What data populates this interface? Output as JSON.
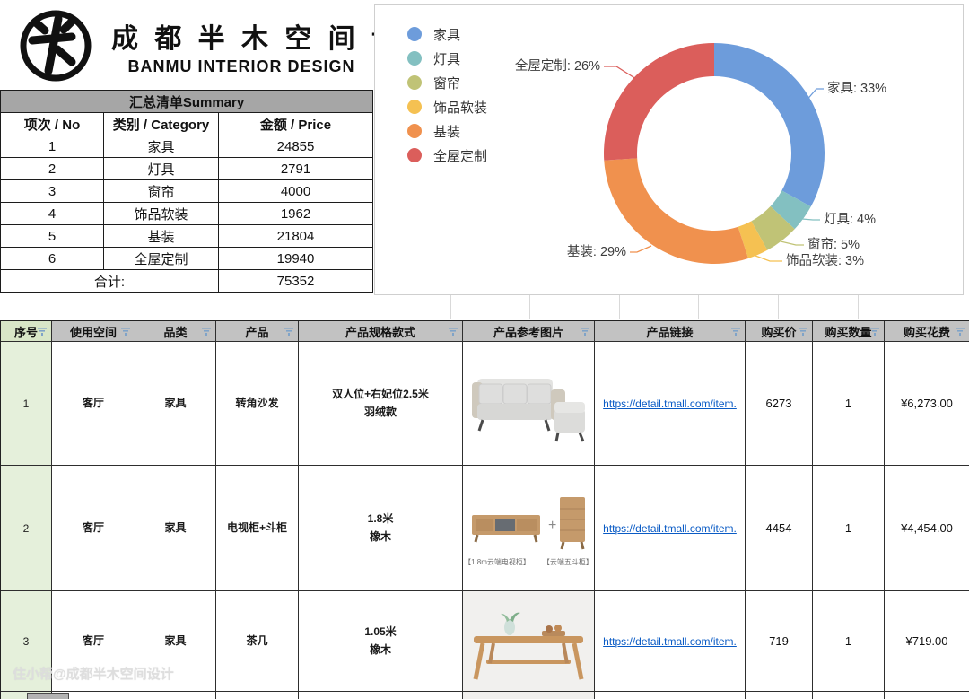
{
  "brand": {
    "title_cn": "成 都 半 木 空 间 设 计",
    "title_en": "BANMU  INTERIOR DESIGN"
  },
  "summary_table": {
    "title": "汇总清单Summary",
    "headers": [
      "项次 / No",
      "类别 / Category",
      "金额 / Price"
    ],
    "rows": [
      {
        "no": "1",
        "category": "家具",
        "price": "24855"
      },
      {
        "no": "2",
        "category": "灯具",
        "price": "2791"
      },
      {
        "no": "3",
        "category": "窗帘",
        "price": "4000"
      },
      {
        "no": "4",
        "category": "饰品软装",
        "price": "1962"
      },
      {
        "no": "5",
        "category": "基装",
        "price": "21804"
      },
      {
        "no": "6",
        "category": "全屋定制",
        "price": "19940"
      }
    ],
    "total_label": "合计:",
    "total_value": "75352"
  },
  "chart_data": {
    "type": "pie",
    "donut": true,
    "categories": [
      "家具",
      "灯具",
      "窗帘",
      "饰品软装",
      "基装",
      "全屋定制"
    ],
    "values": [
      33,
      4,
      5,
      3,
      29,
      26
    ],
    "point_labels": [
      "家具: 33%",
      "灯具: 4%",
      "窗帘: 5%",
      "饰品软装: 3%",
      "基装: 29%",
      "全屋定制: 26%"
    ],
    "colors": [
      "#6d9cdb",
      "#83c0c1",
      "#c0c376",
      "#f5c152",
      "#f0914e",
      "#db5e5b"
    ],
    "legend_position": "left"
  },
  "items_table": {
    "headers": [
      "序号",
      "使用空间",
      "品类",
      "产品",
      "产品规格款式",
      "产品参考图片",
      "产品链接",
      "购买价",
      "购买数量",
      "购买花费"
    ],
    "rows": [
      {
        "no": "1",
        "room": "客厅",
        "category": "家具",
        "product": "转角沙发",
        "spec1": "双人位+右妃位2.5米",
        "spec2": "羽绒款",
        "image": "sofa",
        "link": "https://detail.tmall.com/item.",
        "price": "6273",
        "qty": "1",
        "cost": "¥6,273.00"
      },
      {
        "no": "2",
        "room": "客厅",
        "category": "家具",
        "product": "电视柜+斗柜",
        "spec1": "1.8米",
        "spec2": "橡木",
        "image": "tv-cabinet",
        "image_captions": [
          "【1.8m云端电视柜】",
          "【云端五斗柜】"
        ],
        "link": "https://detail.tmall.com/item.",
        "price": "4454",
        "qty": "1",
        "cost": "¥4,454.00"
      },
      {
        "no": "3",
        "room": "客厅",
        "category": "家具",
        "product": "茶几",
        "spec1": "1.05米",
        "spec2": "橡木",
        "image": "coffee-table",
        "link": "https://detail.tmall.com/item.",
        "price": "719",
        "qty": "1",
        "cost": "¥719.00"
      }
    ]
  },
  "watermark": "住小帮@成都半木空间设计",
  "colors": {
    "summary_header_bg": "#a6a6a6",
    "table_header_bg": "#c2c2c2",
    "no_column_bg": "#e5f0db",
    "link_blue": "#0a5bc5",
    "label_text": "#3d3d3d"
  }
}
